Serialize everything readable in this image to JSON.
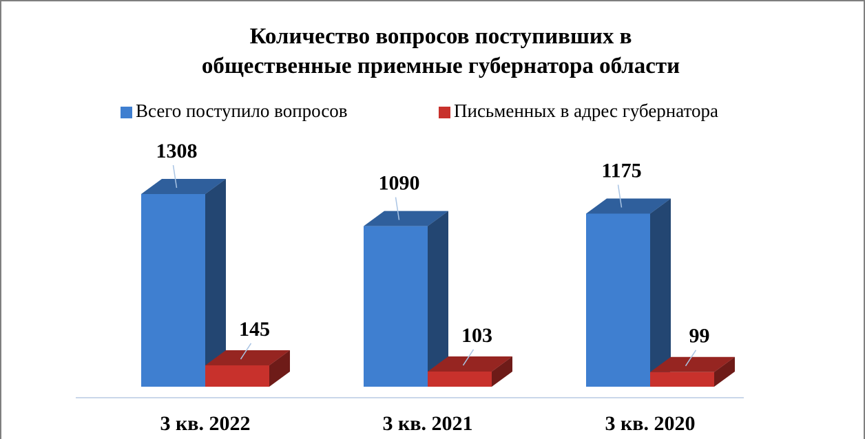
{
  "chart_data": {
    "type": "bar3d",
    "title": "Количество вопросов поступивших в общественные приемные губернатора области",
    "categories": [
      "3 кв. 2022",
      "3 кв. 2021",
      "3 кв. 2020"
    ],
    "series": [
      {
        "name": "Всего поступило вопросов",
        "color": "#3f7fd0",
        "values": [
          1308,
          1090,
          1175
        ]
      },
      {
        "name": "Письменных в адрес губернатора",
        "color": "#c8312c",
        "values": [
          145,
          103,
          99
        ]
      }
    ],
    "legend": "top"
  }
}
